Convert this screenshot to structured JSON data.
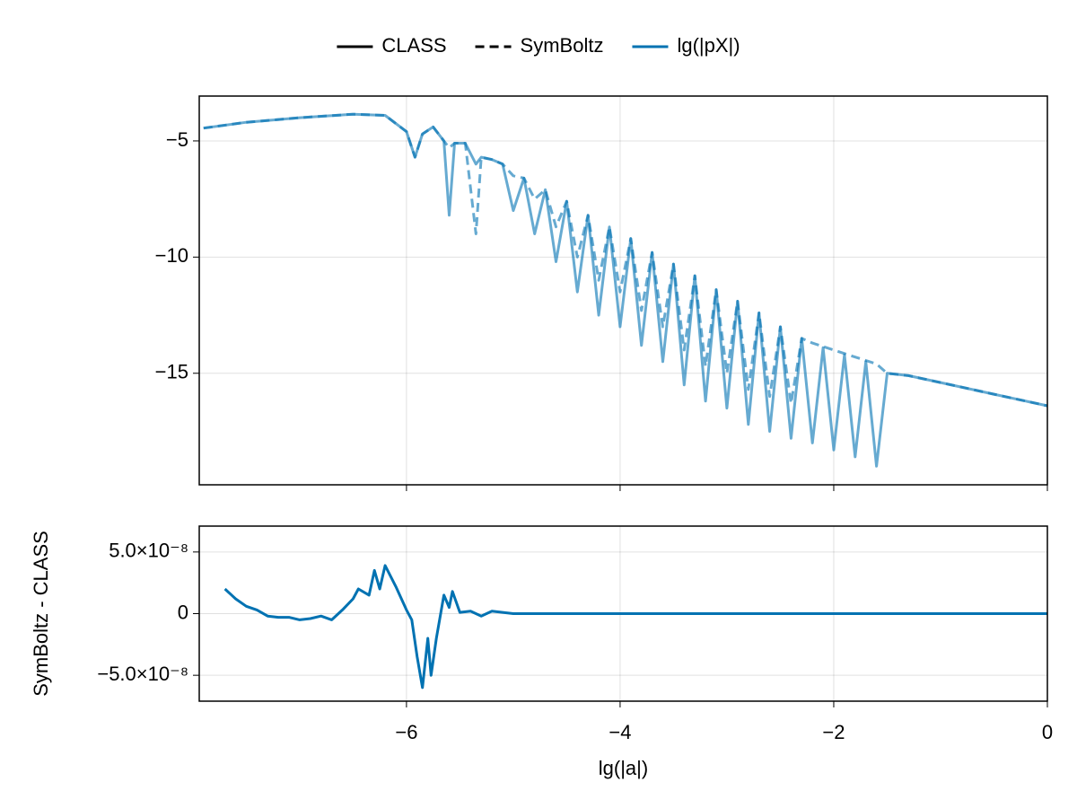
{
  "chart_data": [
    {
      "type": "line",
      "x": [
        -7.9,
        -7.5,
        -7,
        -6.5,
        -6.2,
        -6.0,
        -5.92,
        -5.85,
        -5.75,
        -5.65,
        -5.6,
        -5.55,
        -5.45,
        -5.35,
        -5.3,
        -5.2,
        -5.1,
        -5.0,
        -4.9,
        -4.8,
        -4.7,
        -4.6,
        -4.5,
        -4.4,
        -4.3,
        -4.2,
        -4.1,
        -4.0,
        -3.9,
        -3.8,
        -3.7,
        -3.6,
        -3.5,
        -3.4,
        -3.3,
        -3.2,
        -3.1,
        -3.0,
        -2.9,
        -2.8,
        -2.7,
        -2.6,
        -2.5,
        -2.4,
        -2.3,
        -2.2,
        -2.1,
        -2.0,
        -1.9,
        -1.8,
        -1.7,
        -1.6,
        -1.5,
        -1.3,
        -1.0,
        -0.5,
        0
      ],
      "series": [
        {
          "name": "CLASS",
          "color": "#0072b2",
          "dash": "solid",
          "values": [
            -4.45,
            -4.2,
            -4.0,
            -3.85,
            -3.9,
            -4.6,
            -5.7,
            -4.7,
            -4.4,
            -5.0,
            -8.2,
            -5.1,
            -5.1,
            -6.0,
            -5.7,
            -5.8,
            -6.0,
            -8.0,
            -6.6,
            -9.0,
            -7.1,
            -10.2,
            -7.6,
            -11.5,
            -8.2,
            -12.5,
            -8.7,
            -13.0,
            -9.2,
            -13.8,
            -9.8,
            -14.5,
            -10.3,
            -15.5,
            -10.8,
            -16.2,
            -11.4,
            -16.5,
            -11.9,
            -17.2,
            -12.4,
            -17.5,
            -13.0,
            -17.8,
            -13.5,
            -18.0,
            -13.9,
            -18.3,
            -14.2,
            -18.6,
            -14.5,
            -19.0,
            -15.0,
            -15.1,
            -15.4,
            -15.9,
            -16.4
          ]
        },
        {
          "name": "SymBoltz",
          "color": "#0072b2",
          "dash": "dashed",
          "values": [
            -4.45,
            -4.2,
            -4.0,
            -3.85,
            -3.9,
            -4.6,
            -5.7,
            -4.7,
            -4.4,
            -5.0,
            -5.3,
            -5.1,
            -5.1,
            -9.0,
            -5.7,
            -5.8,
            -6.0,
            -6.5,
            -6.6,
            -7.5,
            -7.1,
            -8.7,
            -7.6,
            -10.0,
            -8.2,
            -11.0,
            -8.7,
            -11.5,
            -9.2,
            -12.3,
            -9.8,
            -13.0,
            -10.3,
            -14.0,
            -10.8,
            -14.7,
            -11.4,
            -15.0,
            -11.9,
            -15.7,
            -12.4,
            -16.0,
            -13.0,
            -16.3,
            -13.5,
            -13.7,
            -13.85,
            -14.0,
            -14.15,
            -14.3,
            -14.45,
            -14.6,
            -15.0,
            -15.1,
            -15.4,
            -15.9,
            -16.4
          ]
        }
      ],
      "opacity": 0.6,
      "xlim": [
        -7.94,
        0
      ],
      "xticks": [
        -6,
        -4,
        -2,
        0
      ],
      "ylim": [
        -19.8,
        -3.07
      ],
      "yticks": [
        {
          "value": -5,
          "label": "−5"
        },
        {
          "value": -10,
          "label": "−10"
        },
        {
          "value": -15,
          "label": "−15"
        }
      ],
      "grid": true,
      "legend": {
        "position": "top",
        "style_color": "#000000",
        "variable": {
          "name": "lg(|pX|)",
          "color": "#0072b2"
        }
      }
    },
    {
      "type": "line",
      "x": [
        -7.7,
        -7.6,
        -7.5,
        -7.4,
        -7.3,
        -7.2,
        -7.1,
        -7.0,
        -6.9,
        -6.8,
        -6.7,
        -6.6,
        -6.5,
        -6.45,
        -6.35,
        -6.3,
        -6.25,
        -6.2,
        -6.1,
        -6.0,
        -5.95,
        -5.9,
        -5.85,
        -5.8,
        -5.77,
        -5.72,
        -5.65,
        -5.6,
        -5.57,
        -5.5,
        -5.4,
        -5.3,
        -5.2,
        -5.0,
        -4.8,
        0
      ],
      "values": [
        2e-08,
        1.2e-08,
        6e-09,
        3e-09,
        -2e-09,
        -3e-09,
        -3e-09,
        -5e-09,
        -4e-09,
        -2e-09,
        -5e-09,
        3e-09,
        1.2e-08,
        2e-08,
        1.5e-08,
        3.5e-08,
        2e-08,
        3.9e-08,
        2.2e-08,
        3e-09,
        -5e-09,
        -3.5e-08,
        -6e-08,
        -2e-08,
        -5e-08,
        -2e-08,
        1.5e-08,
        5e-09,
        1.8e-08,
        1e-09,
        2e-09,
        -2e-09,
        2e-09,
        0,
        0,
        0
      ],
      "color": "#0072b2",
      "xlim": [
        -7.94,
        0
      ],
      "xticks": [
        {
          "value": -6,
          "label": "−6"
        },
        {
          "value": -4,
          "label": "−4"
        },
        {
          "value": -2,
          "label": "−2"
        },
        0
      ],
      "ylim": [
        -7.1e-08,
        7.1e-08
      ],
      "yticks": [
        {
          "value": 5e-08,
          "label": "5.0×10⁻⁸"
        },
        0,
        {
          "value": -5e-08,
          "label": "−5.0×10⁻⁸"
        }
      ],
      "xlabel": "lg(|a|)",
      "ylabel": "SymBoltz - CLASS",
      "grid": true
    }
  ]
}
